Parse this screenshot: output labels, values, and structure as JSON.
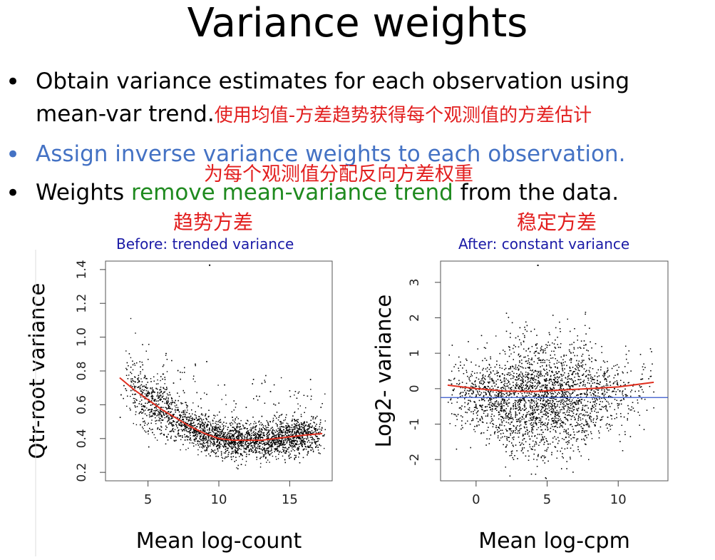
{
  "slide": {
    "title": "Variance weights",
    "bullets": [
      {
        "text": "Obtain variance estimates for each observation using",
        "text2": "mean-var trend.",
        "cn": "使用均值-方差趋势获得每个观测值的方差估计"
      },
      {
        "text": "Assign inverse variance weights to each observation.",
        "cn": "为每个观测值分配反向方差权重"
      },
      {
        "text_a": "Weights ",
        "text_b": "remove mean-variance trend",
        "text_c": " from the data."
      }
    ],
    "colors": {
      "blue": "#4472c4",
      "green": "#1f8a1f",
      "red": "#e21f1f",
      "caption": "#1a1aa6"
    }
  },
  "panels": {
    "left": {
      "cn_label": "趋势方差",
      "caption": "Before: trended variance"
    },
    "right": {
      "cn_label": "稳定方差",
      "caption": "After: constant variance"
    }
  },
  "chart_data": [
    {
      "type": "scatter",
      "title": "Before: trended variance",
      "xlabel": "Mean log-count",
      "ylabel": "Qtr-root variance",
      "xlim": [
        2,
        18
      ],
      "ylim": [
        0.15,
        1.45
      ],
      "xticks": [
        5,
        10,
        15
      ],
      "yticks": [
        0.2,
        0.4,
        0.6,
        0.8,
        1.0,
        1.2,
        1.4
      ],
      "ytick_labels": [
        "0.2",
        "0.4",
        "0.6",
        "0.8",
        "1.0",
        "1.2",
        "1.4"
      ],
      "trend_color": "#e03020",
      "trend_curve": [
        [
          3,
          0.76
        ],
        [
          4,
          0.69
        ],
        [
          5,
          0.63
        ],
        [
          6,
          0.57
        ],
        [
          7,
          0.52
        ],
        [
          8,
          0.47
        ],
        [
          9,
          0.43
        ],
        [
          10,
          0.4
        ],
        [
          11,
          0.39
        ],
        [
          12,
          0.39
        ],
        [
          13,
          0.39
        ],
        [
          14,
          0.4
        ],
        [
          15,
          0.41
        ],
        [
          16,
          0.42
        ],
        [
          17.3,
          0.43
        ]
      ],
      "scatter_summary": {
        "x_range": [
          3,
          17.5
        ],
        "n_points_approx": 12000,
        "max_outlier": [
          9.3,
          1.43
        ]
      }
    },
    {
      "type": "scatter",
      "title": "After: constant variance",
      "xlabel": "Mean log-cpm",
      "ylabel": "Log2- variance",
      "xlim": [
        -2.5,
        13.5
      ],
      "ylim": [
        -2.6,
        3.6
      ],
      "xticks": [
        0,
        5,
        10
      ],
      "yticks": [
        -2,
        -1,
        0,
        1,
        2,
        3
      ],
      "ytick_labels": [
        "-2",
        "-1",
        "0",
        "1",
        "2",
        "3"
      ],
      "trend_color": "#e03020",
      "hline": {
        "y": -0.25,
        "color": "#3355cc"
      },
      "trend_curve": [
        [
          -2,
          0.1
        ],
        [
          0,
          0.0
        ],
        [
          2,
          -0.07
        ],
        [
          4,
          -0.08
        ],
        [
          6,
          -0.04
        ],
        [
          8,
          0.0
        ],
        [
          10,
          0.05
        ],
        [
          12.5,
          0.18
        ]
      ],
      "scatter_summary": {
        "x_range": [
          -2,
          12
        ],
        "n_points_approx": 12000,
        "max_outlier": [
          4.3,
          3.5
        ]
      }
    }
  ]
}
